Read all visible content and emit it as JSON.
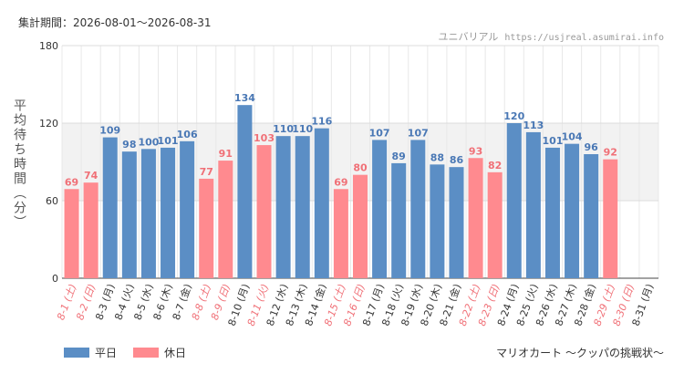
{
  "header": {
    "period": "集計期間：2026-08-01～2026-08-31",
    "site_name": "ユニバリアル",
    "site_url": "https://usjreal.asumirai.info"
  },
  "footer": {
    "attraction": "マリオカート 〜クッパの挑戦状〜"
  },
  "colors": {
    "weekday": "#5b8ec5",
    "holiday": "#ff8a8f",
    "weekday_label": "#4a78b5",
    "holiday_label": "#f07077"
  },
  "chart_data": {
    "type": "bar",
    "ylabel": "平均待ち時間（分）",
    "ylim": [
      0,
      180
    ],
    "yticks": [
      0,
      60,
      120,
      180
    ],
    "grid": true,
    "legend": [
      {
        "name": "平日",
        "color": "#5b8ec5"
      },
      {
        "name": "休日",
        "color": "#ff8a8f"
      }
    ],
    "categories": [
      "8-1 (土)",
      "8-2 (日)",
      "8-3 (月)",
      "8-4 (火)",
      "8-5 (水)",
      "8-6 (木)",
      "8-7 (金)",
      "8-8 (土)",
      "8-9 (日)",
      "8-10 (月)",
      "8-11 (火)",
      "8-12 (水)",
      "8-13 (木)",
      "8-14 (金)",
      "8-15 (土)",
      "8-16 (日)",
      "8-17 (月)",
      "8-18 (火)",
      "8-19 (水)",
      "8-20 (木)",
      "8-21 (金)",
      "8-22 (土)",
      "8-23 (日)",
      "8-24 (月)",
      "8-25 (火)",
      "8-26 (水)",
      "8-27 (木)",
      "8-28 (金)",
      "8-29 (土)",
      "8-30 (日)",
      "8-31 (月)"
    ],
    "values": [
      69,
      74,
      109,
      98,
      100,
      101,
      106,
      77,
      91,
      134,
      103,
      110,
      110,
      116,
      69,
      80,
      107,
      89,
      107,
      88,
      86,
      93,
      82,
      120,
      113,
      101,
      104,
      96,
      92,
      null,
      null
    ],
    "day_type": [
      "holiday",
      "holiday",
      "weekday",
      "weekday",
      "weekday",
      "weekday",
      "weekday",
      "holiday",
      "holiday",
      "weekday",
      "holiday",
      "weekday",
      "weekday",
      "weekday",
      "holiday",
      "holiday",
      "weekday",
      "weekday",
      "weekday",
      "weekday",
      "weekday",
      "holiday",
      "holiday",
      "weekday",
      "weekday",
      "weekday",
      "weekday",
      "weekday",
      "holiday",
      "holiday",
      "weekday"
    ]
  }
}
